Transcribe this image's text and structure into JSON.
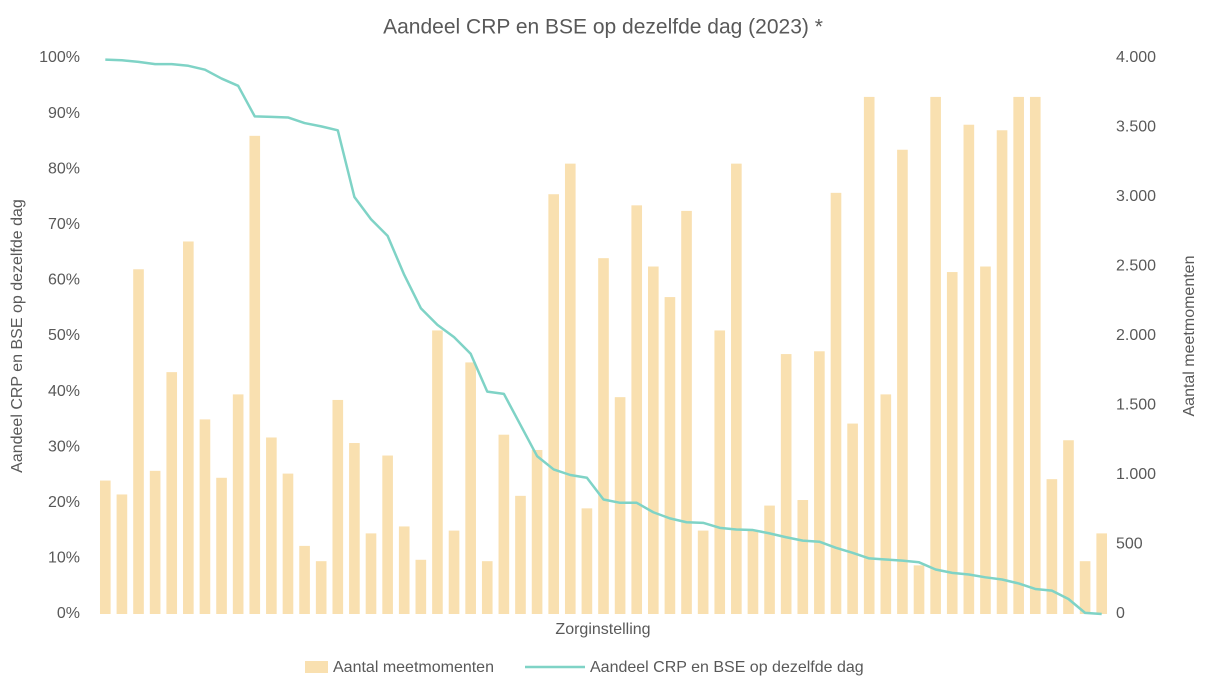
{
  "chart_data": {
    "type": "bar_line",
    "title": "Aandeel CRP en BSE op dezelfde dag (2023) *",
    "x_label": "Zorginstelling",
    "y_label": "Aandeel CRP en BSE op dezelfde dag",
    "y2_label": "Aantal meetmomenten",
    "categories": [
      null,
      null,
      null,
      null,
      null,
      null,
      null,
      null,
      null,
      null,
      null,
      null,
      null,
      null,
      null,
      null,
      null,
      null,
      null,
      null,
      null,
      null,
      null,
      null,
      null,
      null,
      null,
      null,
      null,
      null,
      null,
      null,
      null,
      null,
      null,
      null,
      null,
      null,
      null,
      null,
      null,
      null,
      null,
      null,
      null,
      null,
      null,
      null,
      null,
      null,
      null,
      null,
      null,
      null,
      null,
      null,
      null,
      null,
      null,
      null,
      null
    ],
    "series": [
      {
        "name": "Aantal meetmomenten",
        "kind": "bar",
        "axis": "y2",
        "color": "#f9e0b0",
        "values": [
          960,
          860,
          2480,
          1030,
          1740,
          2680,
          1400,
          980,
          1580,
          3440,
          1270,
          1010,
          490,
          380,
          1540,
          1230,
          580,
          1140,
          630,
          390,
          2040,
          600,
          1810,
          380,
          1290,
          850,
          1180,
          3020,
          3240,
          760,
          2560,
          1560,
          2940,
          2500,
          2280,
          2900,
          600,
          2040,
          3240,
          600,
          780,
          1870,
          820,
          1890,
          3030,
          1370,
          3720,
          1580,
          3340,
          350,
          3720,
          2460,
          3520,
          2500,
          3480,
          3720,
          3720,
          970,
          1250,
          380,
          580
        ]
      },
      {
        "name": "Aandeel CRP en BSE op dezelfde dag",
        "kind": "line",
        "axis": "y",
        "color": "#7fd3c6",
        "values": [
          99.7,
          99.6,
          99.3,
          98.9,
          98.9,
          98.6,
          97.9,
          96.3,
          95,
          89.5,
          89.4,
          89.3,
          88.3,
          87.7,
          87,
          75,
          71,
          68,
          61,
          55,
          52,
          49.8,
          46.8,
          40,
          39.6,
          34,
          28.4,
          26,
          25,
          24.5,
          20.6,
          20,
          20,
          18.3,
          17.2,
          16.5,
          16.4,
          15.5,
          15.2,
          15.1,
          14.5,
          13.8,
          13.2,
          13,
          11.9,
          11,
          10,
          9.8,
          9.6,
          9.3,
          8,
          7.4,
          7.1,
          6.6,
          6.2,
          5.5,
          4.5,
          4.2,
          2.7,
          0.2,
          0
        ]
      }
    ],
    "ylim": [
      0,
      100
    ],
    "yticks": [
      {
        "value": 0,
        "label": "0%"
      },
      {
        "value": 10,
        "label": "10%"
      },
      {
        "value": 20,
        "label": "20%"
      },
      {
        "value": 30,
        "label": "30%"
      },
      {
        "value": 40,
        "label": "40%"
      },
      {
        "value": 50,
        "label": "50%"
      },
      {
        "value": 60,
        "label": "60%"
      },
      {
        "value": 70,
        "label": "70%"
      },
      {
        "value": 80,
        "label": "80%"
      },
      {
        "value": 90,
        "label": "90%"
      },
      {
        "value": 100,
        "label": "100%"
      }
    ],
    "y2lim": [
      0,
      4000
    ],
    "y2ticks": [
      0,
      500,
      {
        "value": 1000,
        "label": "1.000"
      },
      {
        "value": 1500,
        "label": "1.500"
      },
      {
        "value": 2000,
        "label": "2.000"
      },
      {
        "value": 2500,
        "label": "2.500"
      },
      {
        "value": 3000,
        "label": "3.000"
      },
      {
        "value": 3500,
        "label": "3.500"
      },
      {
        "value": 4000,
        "label": "4.000"
      }
    ],
    "grid": false,
    "legend": "bottom"
  }
}
